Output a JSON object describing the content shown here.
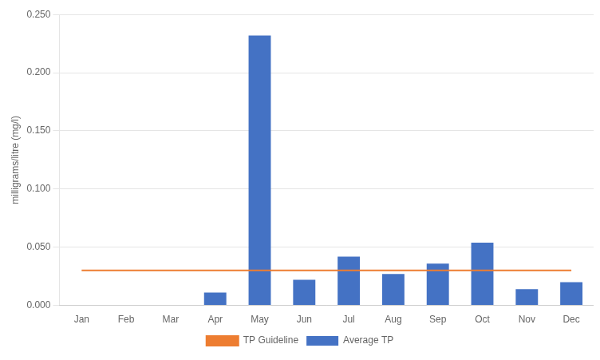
{
  "chart_data": {
    "type": "bar",
    "categories": [
      "Jan",
      "Feb",
      "Mar",
      "Apr",
      "May",
      "Jun",
      "Jul",
      "Aug",
      "Sep",
      "Oct",
      "Nov",
      "Dec"
    ],
    "series": [
      {
        "name": "Average TP",
        "color": "#4472C4",
        "values": [
          0.0,
          0.0,
          0.0,
          0.011,
          0.232,
          0.022,
          0.042,
          0.027,
          0.036,
          0.054,
          0.014,
          0.02
        ]
      },
      {
        "name": "TP Guideline",
        "type": "line",
        "color": "#ED7D31",
        "values": [
          0.03,
          0.03,
          0.03,
          0.03,
          0.03,
          0.03,
          0.03,
          0.03,
          0.03,
          0.03,
          0.03,
          0.03
        ]
      }
    ],
    "ylabel": "milligrams/litre (mg/l)",
    "ylim": [
      0.0,
      0.25
    ],
    "yticks": [
      {
        "value": 0.0,
        "label": "0.000"
      },
      {
        "value": 0.05,
        "label": "0.050"
      },
      {
        "value": 0.1,
        "label": "0.100"
      },
      {
        "value": 0.15,
        "label": "0.150"
      },
      {
        "value": 0.2,
        "label": "0.200"
      },
      {
        "value": 0.25,
        "label": "0.250"
      }
    ],
    "grid": true,
    "legend": "bottom"
  }
}
